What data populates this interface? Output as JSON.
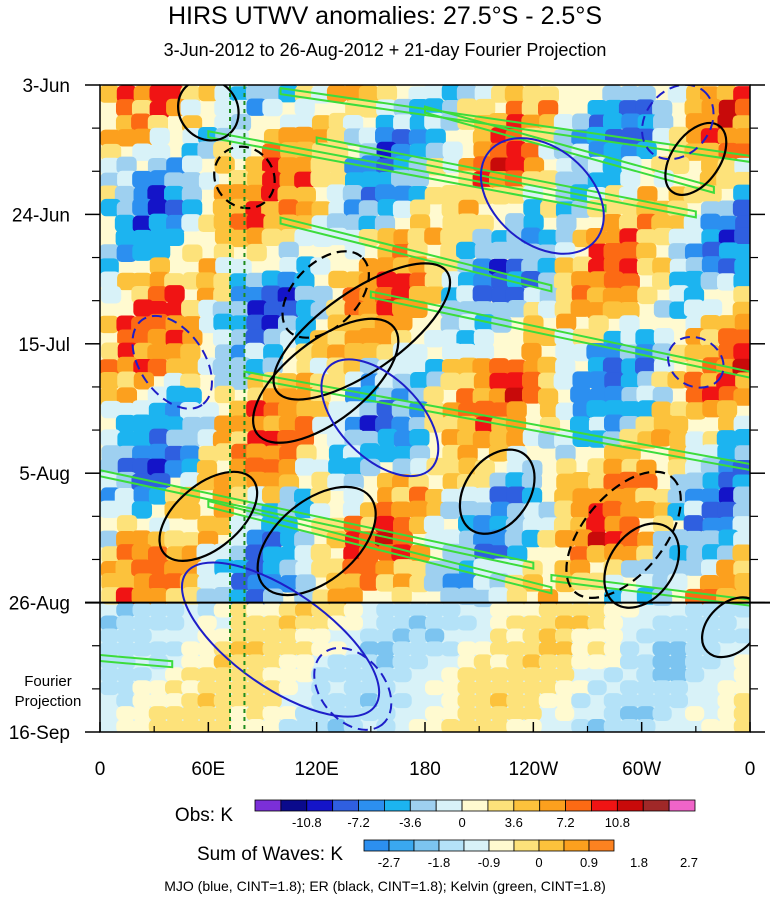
{
  "title": "HIRS UTWV anomalies: 27.5°S - 2.5°S",
  "subtitle": "3-Jun-2012 to 26-Aug-2012 + 21-day Fourier Projection",
  "footer": "MJO (blue, CINT=1.8); ER (black, CINT=1.8); Kelvin (green, CINT=1.8)",
  "chart_data": {
    "type": "heatmap",
    "title": "HIRS UTWV anomalies: 27.5°S - 2.5°S",
    "subtitle": "3-Jun-2012 to 26-Aug-2012 + 21-day Fourier Projection",
    "x_tick_labels": [
      "0",
      "60E",
      "120E",
      "180",
      "120W",
      "60W",
      "0"
    ],
    "x_ticks_deg": [
      0,
      60,
      120,
      180,
      240,
      300,
      360
    ],
    "xlim": [
      0,
      360
    ],
    "y_tick_labels": [
      "3-Jun",
      "24-Jun",
      "15-Jul",
      "5-Aug",
      "26-Aug",
      "16-Sep"
    ],
    "y_ticks_day": [
      0,
      21,
      42,
      63,
      84,
      105
    ],
    "ylim_days": [
      0,
      105
    ],
    "projection_start_day": 84,
    "projection_label": [
      "Fourier",
      "Projection"
    ],
    "grid": false,
    "colorbars": [
      {
        "label": "Obs: K",
        "colors": [
          "#7b2fd8",
          "#0a0a8c",
          "#1414c8",
          "#2f5fe0",
          "#2c8ff0",
          "#1cb4f0",
          "#9ed0f0",
          "#d8f2f8",
          "#fffad0",
          "#fde27a",
          "#fcc23c",
          "#fca01e",
          "#fc6a14",
          "#f01414",
          "#c80a0a",
          "#a02828",
          "#f064c8"
        ],
        "tick_labels": [
          "-10.8",
          "-7.2",
          "-3.6",
          "0",
          "3.6",
          "7.2",
          "10.8"
        ]
      },
      {
        "label": "Sum of Waves: K",
        "colors": [
          "#2c8ff0",
          "#3aa8f0",
          "#7cc4f0",
          "#b4e2f8",
          "#d8f2f8",
          "#fffad0",
          "#fde27a",
          "#fcc23c",
          "#fca01e",
          "#fc8220"
        ],
        "tick_labels": [
          "-2.7",
          "-1.8",
          "-0.9",
          "0",
          "0.9",
          "1.8",
          "2.7"
        ]
      }
    ],
    "contour_legend": [
      {
        "name": "MJO",
        "color": "#1e1ec8",
        "cint": 1.8
      },
      {
        "name": "ER",
        "color": "#000000",
        "cint": 1.8
      },
      {
        "name": "Kelvin",
        "color": "#3cdc3c",
        "cint": 1.8
      }
    ],
    "reference_lines_deg": [
      72,
      80
    ],
    "reference_line_color": "#1e8c1e",
    "kelvin_bands": [
      {
        "x1": 100,
        "d1": 1,
        "x2": 360,
        "d2": 12
      },
      {
        "x1": 180,
        "d1": 4,
        "x2": 340,
        "d2": 17
      },
      {
        "x1": 60,
        "d1": 8,
        "x2": 280,
        "d2": 20
      },
      {
        "x1": 120,
        "d1": 9,
        "x2": 330,
        "d2": 21
      },
      {
        "x1": 100,
        "d1": 22,
        "x2": 250,
        "d2": 33
      },
      {
        "x1": 150,
        "d1": 34,
        "x2": 360,
        "d2": 47
      },
      {
        "x1": 80,
        "d1": 47,
        "x2": 360,
        "d2": 62
      },
      {
        "x1": 0,
        "d1": 63,
        "x2": 240,
        "d2": 78
      },
      {
        "x1": 60,
        "d1": 68,
        "x2": 250,
        "d2": 82
      },
      {
        "x1": 250,
        "d1": 80,
        "x2": 360,
        "d2": 84
      },
      {
        "x1": 0,
        "d1": 93,
        "x2": 40,
        "d2": 94
      }
    ],
    "er_ellipses": [
      {
        "cx": 60,
        "cy": 4,
        "rx": 10,
        "ry": 4,
        "rot": -40,
        "dash": false
      },
      {
        "cx": 80,
        "cy": 15,
        "rx": 10,
        "ry": 4,
        "rot": -40,
        "dash": true
      },
      {
        "cx": 145,
        "cy": 40,
        "rx": 36,
        "ry": 5,
        "rot": -35,
        "dash": false
      },
      {
        "cx": 125,
        "cy": 48,
        "rx": 30,
        "ry": 5,
        "rot": -38,
        "dash": false
      },
      {
        "cx": 125,
        "cy": 34,
        "rx": 18,
        "ry": 4,
        "rot": -45,
        "dash": true
      },
      {
        "cx": 60,
        "cy": 70,
        "rx": 20,
        "ry": 4,
        "rot": -40,
        "dash": false
      },
      {
        "cx": 120,
        "cy": 74,
        "rx": 24,
        "ry": 5,
        "rot": -40,
        "dash": false
      },
      {
        "cx": 330,
        "cy": 12,
        "rx": 14,
        "ry": 3,
        "rot": -55,
        "dash": false
      },
      {
        "cx": 290,
        "cy": 73,
        "rx": 26,
        "ry": 5,
        "rot": -50,
        "dash": true
      },
      {
        "cx": 220,
        "cy": 66,
        "rx": 16,
        "ry": 4,
        "rot": -55,
        "dash": false
      },
      {
        "cx": 300,
        "cy": 78,
        "rx": 16,
        "ry": 4,
        "rot": -55,
        "dash": false
      },
      {
        "cx": 350,
        "cy": 88,
        "rx": 12,
        "ry": 3,
        "rot": -45,
        "dash": false
      }
    ],
    "mjo_ellipses": [
      {
        "cx": 245,
        "cy": 18,
        "rx": 24,
        "ry": 6,
        "rot": 40,
        "dash": false
      },
      {
        "cx": 155,
        "cy": 54,
        "rx": 25,
        "ry": 5,
        "rot": 45,
        "dash": false
      },
      {
        "cx": 40,
        "cy": 45,
        "rx": 18,
        "ry": 4,
        "rot": 55,
        "dash": true
      },
      {
        "cx": 100,
        "cy": 90,
        "rx": 40,
        "ry": 6,
        "rot": 35,
        "dash": false
      },
      {
        "cx": 140,
        "cy": 98,
        "rx": 16,
        "ry": 4,
        "rot": 50,
        "dash": true
      },
      {
        "cx": 330,
        "cy": 45,
        "rx": 10,
        "ry": 3,
        "rot": 30,
        "dash": true
      },
      {
        "cx": 320,
        "cy": 6,
        "rx": 14,
        "ry": 4,
        "rot": -50,
        "dash": true
      }
    ]
  }
}
